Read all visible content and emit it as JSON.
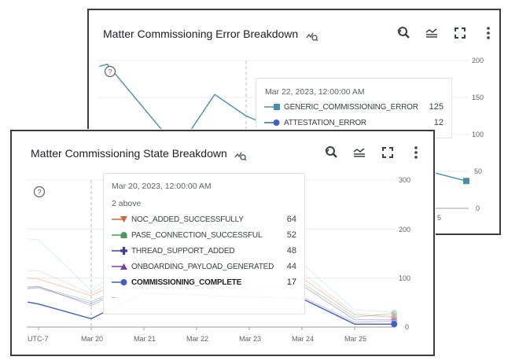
{
  "error_chart": {
    "title": "Matter Commissioning Error Breakdown",
    "icons": [
      "chart-inspect-icon",
      "zoom-reset-icon",
      "legend-icon",
      "fullscreen-icon",
      "more-vert-icon",
      "help-icon"
    ],
    "tooltip": {
      "date": "Mar 22, 2023, 12:00:00 AM",
      "rows": [
        {
          "label": "GENERIC_COMMISSIONING_ERROR",
          "value": "125",
          "color": "#4a8fa8",
          "marker": "square"
        },
        {
          "label": "ATTESTATION_ERROR",
          "value": "12",
          "color": "#3c5fc8",
          "marker": "circle"
        }
      ]
    },
    "y_ticks": [
      "200",
      "150",
      "100",
      "50",
      "0"
    ],
    "x_tick_partial": "5"
  },
  "state_chart": {
    "title": "Matter Commissioning State Breakdown",
    "icons": [
      "chart-inspect-icon",
      "zoom-reset-icon",
      "legend-icon",
      "fullscreen-icon",
      "more-vert-icon",
      "help-icon"
    ],
    "tooltip": {
      "date": "Mar 20, 2023, 12:00:00 AM",
      "above": "2 above",
      "rows": [
        {
          "label": "NOC_ADDED_SUCCESSFULLY",
          "value": "64",
          "color": "#d2692e",
          "marker": "triangle-down"
        },
        {
          "label": "PASE_CONNECTION_SUCCESSFUL",
          "value": "52",
          "color": "#4a9a5a",
          "marker": "dome"
        },
        {
          "label": "THREAD_SUPPORT_ADDED",
          "value": "48",
          "color": "#3a3ea0",
          "marker": "plus"
        },
        {
          "label": "ONBOARDING_PAYLOAD_GENERATED",
          "value": "44",
          "color": "#7a3fb0",
          "marker": "triangle-up"
        },
        {
          "label": "COMMISSIONING_COMPLETE",
          "value": "17",
          "color": "#3c5fc8",
          "marker": "circle",
          "bold": true
        }
      ],
      "more": "–"
    },
    "y_ticks": [
      "300",
      "200",
      "100",
      "0"
    ],
    "x_ticks": [
      "UTC-7",
      "Mar 20",
      "Mar 21",
      "Mar 22",
      "Mar 23",
      "Mar 24",
      "Mar 25"
    ]
  },
  "chart_data": [
    {
      "type": "line",
      "title": "Matter Commissioning Error Breakdown",
      "ylim": [
        0,
        200
      ],
      "series": [
        {
          "name": "GENERIC_COMMISSIONING_ERROR",
          "color": "#4a8fa8",
          "x": [
            "2023-03-19T16:00",
            "2023-03-19T19:00",
            "2023-03-20T22:00",
            "2023-03-21T12:00",
            "2023-03-22T00:00",
            "2023-03-23T00:00",
            "2023-03-24T00:00",
            "2023-03-25T00:00",
            "2023-03-25T12:00"
          ],
          "y": [
            192,
            195,
            80,
            154,
            125,
            90,
            60,
            48,
            37
          ]
        }
      ]
    },
    {
      "type": "line",
      "title": "Matter Commissioning State Breakdown",
      "ylim": [
        0,
        300
      ],
      "x": [
        "2023-03-18T19:00",
        "2023-03-19T00:00",
        "2023-03-20T00:00",
        "2023-03-21T00:00",
        "2023-03-22T00:00",
        "2023-03-23T00:00",
        "2023-03-24T00:00",
        "2023-03-25T00:00",
        "2023-03-25T18:00"
      ],
      "series": [
        {
          "color": "#8fd0d8",
          "y": [
            180,
            178,
            75,
            150,
            130,
            120,
            130,
            35,
            30
          ]
        },
        {
          "color": "#e8a0b0",
          "y": [
            115,
            115,
            68,
            130,
            110,
            105,
            110,
            28,
            22
          ]
        },
        {
          "name": "NOC_ADDED_SUCCESSFULLY",
          "color": "#d2692e",
          "y": [
            100,
            98,
            64,
            115,
            95,
            90,
            100,
            25,
            20
          ]
        },
        {
          "name": "PASE_CONNECTION_SUCCESSFUL",
          "color": "#4a9a5a",
          "y": [
            80,
            82,
            52,
            100,
            85,
            80,
            90,
            20,
            28
          ]
        },
        {
          "name": "THREAD_SUPPORT_ADDED",
          "color": "#3a3ea0",
          "y": [
            78,
            80,
            48,
            95,
            80,
            75,
            85,
            15,
            15
          ]
        },
        {
          "name": "ONBOARDING_PAYLOAD_GENERATED",
          "color": "#7a3fb0",
          "y": [
            82,
            83,
            44,
            95,
            45,
            66,
            62,
            10,
            12
          ]
        },
        {
          "name": "COMMISSIONING_COMPLETE",
          "color": "#3c5fc8",
          "highlighted": true,
          "y": [
            51,
            47,
            17,
            70,
            65,
            62,
            58,
            6,
            6
          ]
        }
      ]
    }
  ]
}
